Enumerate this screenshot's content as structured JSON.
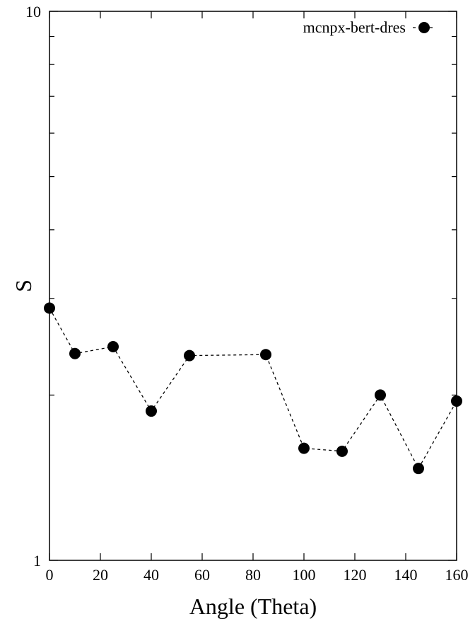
{
  "chart_data": {
    "type": "line",
    "xlabel": "Angle (Theta)",
    "ylabel": "S",
    "xlim": [
      0,
      160
    ],
    "ylim": [
      1,
      10
    ],
    "yscale": "log",
    "x_ticks": [
      "0",
      "20",
      "40",
      "60",
      "80",
      "100",
      "120",
      "140",
      "160"
    ],
    "x_tick_values": [
      0,
      20,
      40,
      60,
      80,
      100,
      120,
      140,
      160
    ],
    "y_major_ticks": [
      "1",
      "10"
    ],
    "y_major_values": [
      1,
      10
    ],
    "y_minor_values": [
      2,
      3,
      4,
      5,
      6,
      7,
      8,
      9
    ],
    "grid": false,
    "legend_position": "top-right",
    "series": [
      {
        "name": "mcnpx-bert-dres",
        "color": "#000000",
        "line_style": "dashed",
        "marker": "filled-circle",
        "x": [
          0,
          10,
          25,
          40,
          55,
          85,
          100,
          115,
          130,
          145,
          160
        ],
        "y": [
          2.88,
          2.38,
          2.45,
          1.87,
          2.36,
          2.37,
          1.6,
          1.58,
          2.0,
          1.47,
          1.95
        ]
      }
    ]
  }
}
